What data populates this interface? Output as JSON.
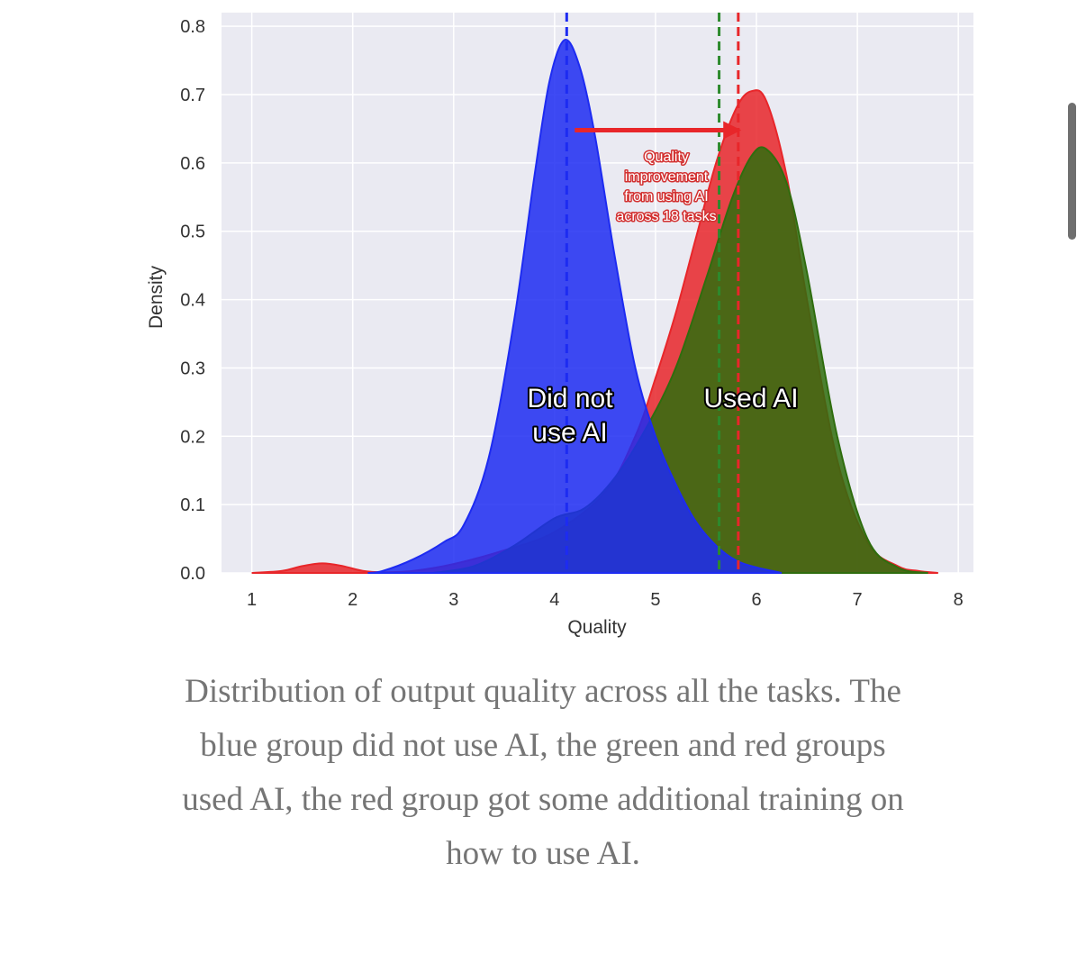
{
  "chart_data": {
    "type": "area",
    "xlabel": "Quality",
    "ylabel": "Density",
    "xlim": [
      0.7,
      8.15
    ],
    "ylim": [
      0,
      0.82
    ],
    "x_ticks": [
      "1",
      "2",
      "3",
      "4",
      "5",
      "6",
      "7",
      "8"
    ],
    "y_ticks": [
      "0.0",
      "0.1",
      "0.2",
      "0.3",
      "0.4",
      "0.5",
      "0.6",
      "0.7",
      "0.8"
    ],
    "grid": true,
    "series": [
      {
        "color": "#e8262a",
        "x": [
          1.0,
          1.3,
          1.5,
          1.7,
          1.9,
          2.1,
          2.3,
          2.6,
          3.0,
          3.5,
          4.0,
          4.5,
          4.8,
          5.0,
          5.2,
          5.4,
          5.6,
          5.8,
          5.95,
          6.1,
          6.3,
          6.5,
          6.8,
          7.1,
          7.4,
          7.6,
          7.8
        ],
        "y": [
          0.0,
          0.003,
          0.01,
          0.014,
          0.01,
          0.003,
          0.001,
          0.003,
          0.013,
          0.033,
          0.06,
          0.118,
          0.2,
          0.285,
          0.38,
          0.49,
          0.6,
          0.68,
          0.705,
          0.69,
          0.58,
          0.4,
          0.165,
          0.045,
          0.01,
          0.003,
          0.0
        ]
      },
      {
        "color": "#2f6d0e",
        "x": [
          2.8,
          3.2,
          3.6,
          4.0,
          4.3,
          4.6,
          4.9,
          5.2,
          5.5,
          5.75,
          5.95,
          6.1,
          6.3,
          6.5,
          6.8,
          7.1,
          7.4,
          7.7
        ],
        "y": [
          0.0,
          0.01,
          0.04,
          0.08,
          0.095,
          0.14,
          0.21,
          0.3,
          0.43,
          0.545,
          0.61,
          0.62,
          0.57,
          0.44,
          0.2,
          0.05,
          0.008,
          0.0
        ]
      },
      {
        "color": "#1d2bf2",
        "x": [
          2.15,
          2.3,
          2.6,
          2.9,
          3.1,
          3.35,
          3.6,
          3.8,
          3.95,
          4.1,
          4.25,
          4.4,
          4.6,
          4.8,
          5.0,
          5.2,
          5.4,
          5.6,
          5.8,
          6.0,
          6.25
        ],
        "y": [
          0.0,
          0.003,
          0.02,
          0.045,
          0.07,
          0.17,
          0.37,
          0.58,
          0.72,
          0.78,
          0.74,
          0.64,
          0.46,
          0.3,
          0.2,
          0.13,
          0.075,
          0.04,
          0.018,
          0.008,
          0.0
        ]
      }
    ],
    "vlines": [
      {
        "x": 4.12,
        "color": "#1d2bf2"
      },
      {
        "x": 5.63,
        "color": "#2d8a2d"
      },
      {
        "x": 5.82,
        "color": "#e8262a"
      }
    ],
    "annotations": {
      "arrow": {
        "from": [
          4.2,
          0.648
        ],
        "to": [
          5.85,
          0.648
        ],
        "color": "#e8262a"
      },
      "improvement_lines": [
        "Quality",
        "improvement",
        "from using AI",
        "across 18 tasks"
      ],
      "did_not_lines": [
        "Did not",
        "use AI"
      ],
      "used_ai": "Used AI"
    }
  },
  "caption": "Distribution of output quality across all the tasks. The blue group did not use AI, the green and red groups used AI, the red group got some additional training on how to use AI."
}
